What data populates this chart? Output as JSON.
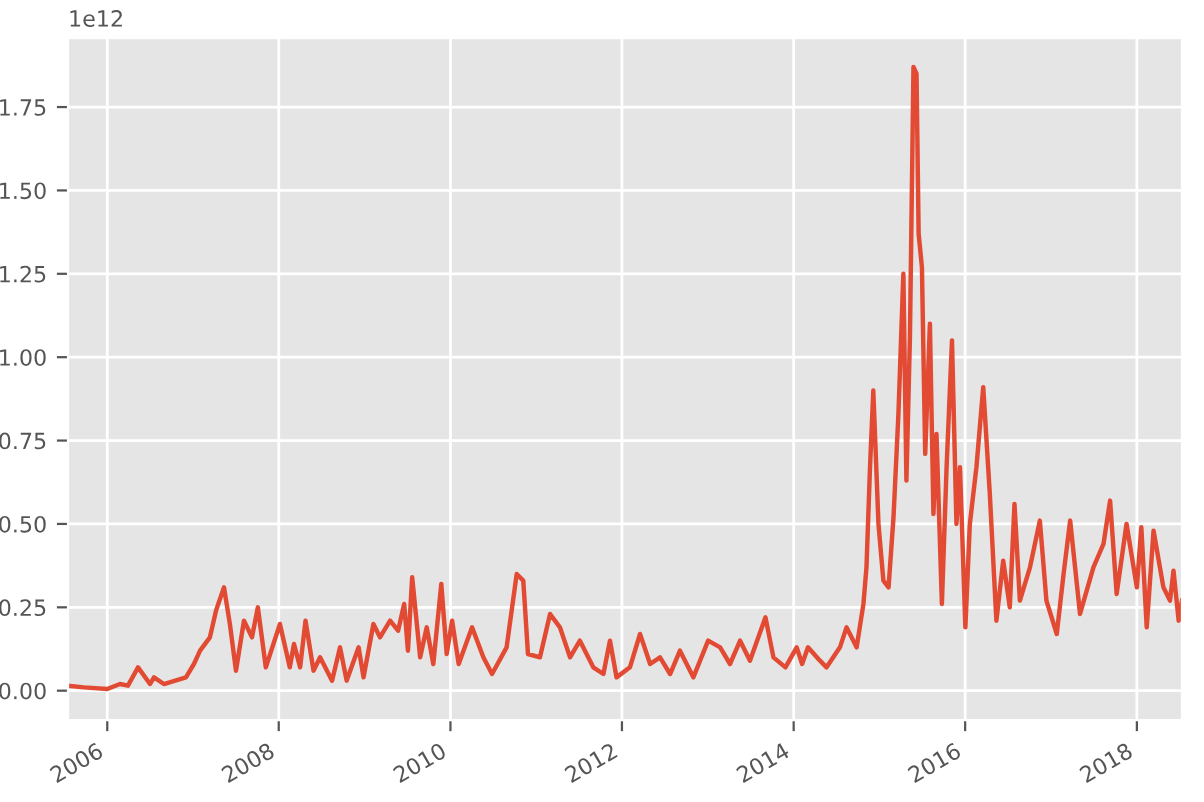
{
  "chart_data": {
    "type": "line",
    "x": [
      "2005-07-18",
      "2005-09-24",
      "2006-01-01",
      "2006-02-24",
      "2006-03-30",
      "2006-05-12",
      "2006-07-02",
      "2006-07-19",
      "2006-08-30",
      "2006-12-02",
      "2007-01-05",
      "2007-01-31",
      "2007-03-14",
      "2007-04-09",
      "2007-05-13",
      "2007-06-07",
      "2007-07-03",
      "2007-08-06",
      "2007-09-09",
      "2007-10-04",
      "2007-11-07",
      "2008-01-06",
      "2008-02-17",
      "2008-03-06",
      "2008-04-01",
      "2008-04-24",
      "2008-05-28",
      "2008-06-25",
      "2008-08-15",
      "2008-09-18",
      "2008-10-16",
      "2008-12-06",
      "2008-12-27",
      "2009-02-07",
      "2009-03-07",
      "2009-04-19",
      "2009-05-23",
      "2009-06-18",
      "2009-07-04",
      "2009-07-22",
      "2009-08-25",
      "2009-09-22",
      "2009-10-20",
      "2009-11-23",
      "2009-12-16",
      "2010-01-08",
      "2010-02-05",
      "2010-04-03",
      "2010-05-21",
      "2010-06-27",
      "2010-08-28",
      "2010-10-10",
      "2010-11-07",
      "2010-11-27",
      "2011-01-17",
      "2011-03-01",
      "2011-04-12",
      "2011-05-25",
      "2011-07-06",
      "2011-09-01",
      "2011-10-14",
      "2011-11-11",
      "2011-12-09",
      "2012-02-04",
      "2012-03-18",
      "2012-04-30",
      "2012-06-11",
      "2012-07-24",
      "2012-09-04",
      "2012-10-31",
      "2013-01-02",
      "2013-02-22",
      "2013-04-05",
      "2013-05-18",
      "2013-06-29",
      "2013-09-03",
      "2013-10-07",
      "2013-11-27",
      "2014-01-14",
      "2014-02-06",
      "2014-03-03",
      "2014-04-23",
      "2014-05-21",
      "2014-07-17",
      "2014-08-14",
      "2014-09-26",
      "2014-10-25",
      "2014-11-07",
      "2014-11-22",
      "2014-12-06",
      "2014-12-28",
      "2015-01-18",
      "2015-02-09",
      "2015-03-02",
      "2015-03-23",
      "2015-04-13",
      "2015-04-26",
      "2015-05-11",
      "2015-05-26",
      "2015-06-08",
      "2015-06-17",
      "2015-07-01",
      "2015-07-15",
      "2015-08-04",
      "2015-08-19",
      "2015-09-01",
      "2015-09-24",
      "2015-10-14",
      "2015-11-06",
      "2015-11-25",
      "2015-12-10",
      "2016-01-02",
      "2016-01-21",
      "2016-02-18",
      "2016-03-18",
      "2016-04-15",
      "2016-05-13",
      "2016-06-11",
      "2016-07-09",
      "2016-07-29",
      "2016-08-21",
      "2016-10-03",
      "2016-11-14",
      "2016-12-12",
      "2017-01-25",
      "2017-02-23",
      "2017-03-23",
      "2017-05-04",
      "2017-06-30",
      "2017-08-12",
      "2017-09-09",
      "2017-10-07",
      "2017-11-18",
      "2018-01-01",
      "2018-01-20",
      "2018-02-12",
      "2018-03-13",
      "2018-04-24",
      "2018-05-22",
      "2018-06-06",
      "2018-06-28",
      "2018-07-12"
    ],
    "series": [
      {
        "color": "#e24a33",
        "values": [
          0.015,
          0.01,
          0.005,
          0.02,
          0.015,
          0.07,
          0.02,
          0.04,
          0.02,
          0.04,
          0.08,
          0.12,
          0.16,
          0.24,
          0.31,
          0.2,
          0.06,
          0.21,
          0.16,
          0.25,
          0.07,
          0.2,
          0.07,
          0.14,
          0.07,
          0.21,
          0.06,
          0.1,
          0.03,
          0.13,
          0.03,
          0.13,
          0.04,
          0.2,
          0.16,
          0.21,
          0.18,
          0.26,
          0.12,
          0.34,
          0.1,
          0.19,
          0.08,
          0.32,
          0.11,
          0.21,
          0.08,
          0.19,
          0.1,
          0.05,
          0.13,
          0.35,
          0.33,
          0.11,
          0.1,
          0.23,
          0.19,
          0.1,
          0.15,
          0.07,
          0.05,
          0.15,
          0.04,
          0.07,
          0.17,
          0.08,
          0.1,
          0.05,
          0.12,
          0.04,
          0.15,
          0.13,
          0.08,
          0.15,
          0.09,
          0.22,
          0.1,
          0.07,
          0.13,
          0.08,
          0.13,
          0.09,
          0.07,
          0.13,
          0.19,
          0.13,
          0.26,
          0.37,
          0.67,
          0.9,
          0.5,
          0.33,
          0.31,
          0.52,
          0.83,
          1.25,
          0.63,
          1.06,
          1.87,
          1.85,
          1.37,
          1.27,
          0.71,
          1.1,
          0.53,
          0.77,
          0.26,
          0.67,
          1.05,
          0.5,
          0.67,
          0.19,
          0.5,
          0.67,
          0.91,
          0.59,
          0.21,
          0.39,
          0.25,
          0.56,
          0.27,
          0.37,
          0.51,
          0.27,
          0.17,
          0.35,
          0.51,
          0.23,
          0.37,
          0.44,
          0.57,
          0.29,
          0.5,
          0.31,
          0.49,
          0.19,
          0.48,
          0.31,
          0.27,
          0.36,
          0.21,
          0.27
        ]
      }
    ],
    "xlim": [
      "2005-07-18",
      "2018-07-12"
    ],
    "xticks": [
      "2006",
      "2008",
      "2010",
      "2012",
      "2014",
      "2016",
      "2018"
    ],
    "ylim": [
      -0.088,
      1.957
    ],
    "yticks": [
      {
        "value": 0,
        "label": "0.00"
      },
      {
        "value": 0.25,
        "label": "0.25"
      },
      {
        "value": 0.5,
        "label": "0.50"
      },
      {
        "value": 0.75,
        "label": "0.75"
      },
      {
        "value": 1,
        "label": "1.00"
      },
      {
        "value": 1.25,
        "label": "1.25"
      },
      {
        "value": 1.5,
        "label": "1.50"
      },
      {
        "value": 1.75,
        "label": "1.75"
      }
    ],
    "annotations": [
      "1e12"
    ],
    "grid": true
  }
}
